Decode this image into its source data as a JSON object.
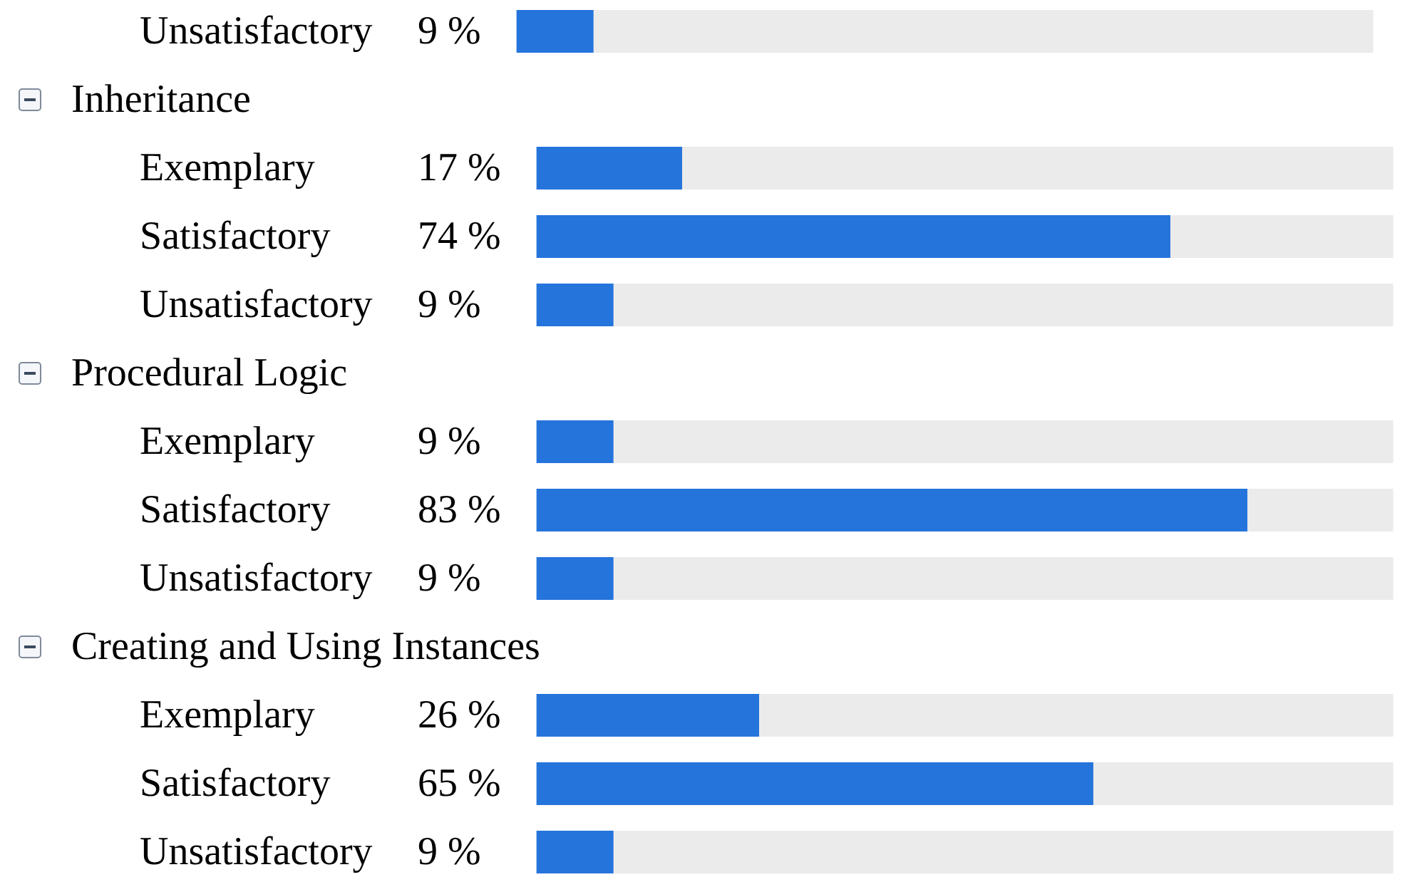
{
  "chart_data": [
    {
      "type": "bar",
      "orientation": "horizontal",
      "stacked": true,
      "categories": [
        "Unsatisfactory"
      ],
      "xlim": [
        0,
        100
      ],
      "series": [
        {
          "color": "#2574dc",
          "values": [
            9
          ],
          "value_labels": [
            "9 %"
          ]
        },
        {
          "color": "#ebebeb",
          "values": [
            91
          ]
        }
      ]
    },
    {
      "type": "bar",
      "orientation": "horizontal",
      "stacked": true,
      "title": "Inheritance",
      "categories": [
        "Exemplary",
        "Satisfactory",
        "Unsatisfactory"
      ],
      "xlim": [
        0,
        100
      ],
      "series": [
        {
          "color": "#2574dc",
          "values": [
            17,
            74,
            9
          ],
          "value_labels": [
            "17 %",
            "74 %",
            "9 %"
          ]
        },
        {
          "color": "#ebebeb",
          "values": [
            83,
            26,
            91
          ]
        }
      ]
    },
    {
      "type": "bar",
      "orientation": "horizontal",
      "stacked": true,
      "title": "Procedural Logic",
      "categories": [
        "Exemplary",
        "Satisfactory",
        "Unsatisfactory"
      ],
      "xlim": [
        0,
        100
      ],
      "series": [
        {
          "color": "#2574dc",
          "values": [
            9,
            83,
            9
          ],
          "value_labels": [
            "9 %",
            "83 %",
            "9 %"
          ]
        },
        {
          "color": "#ebebeb",
          "values": [
            91,
            17,
            91
          ]
        }
      ]
    },
    {
      "type": "bar",
      "orientation": "horizontal",
      "stacked": true,
      "title": "Creating and Using Instances",
      "categories": [
        "Exemplary",
        "Satisfactory",
        "Unsatisfactory"
      ],
      "xlim": [
        0,
        100
      ],
      "series": [
        {
          "color": "#2574dc",
          "values": [
            26,
            65,
            9
          ],
          "value_labels": [
            "26 %",
            "65 %",
            "9 %"
          ]
        },
        {
          "color": "#ebebeb",
          "values": [
            74,
            35,
            91
          ]
        }
      ]
    }
  ]
}
